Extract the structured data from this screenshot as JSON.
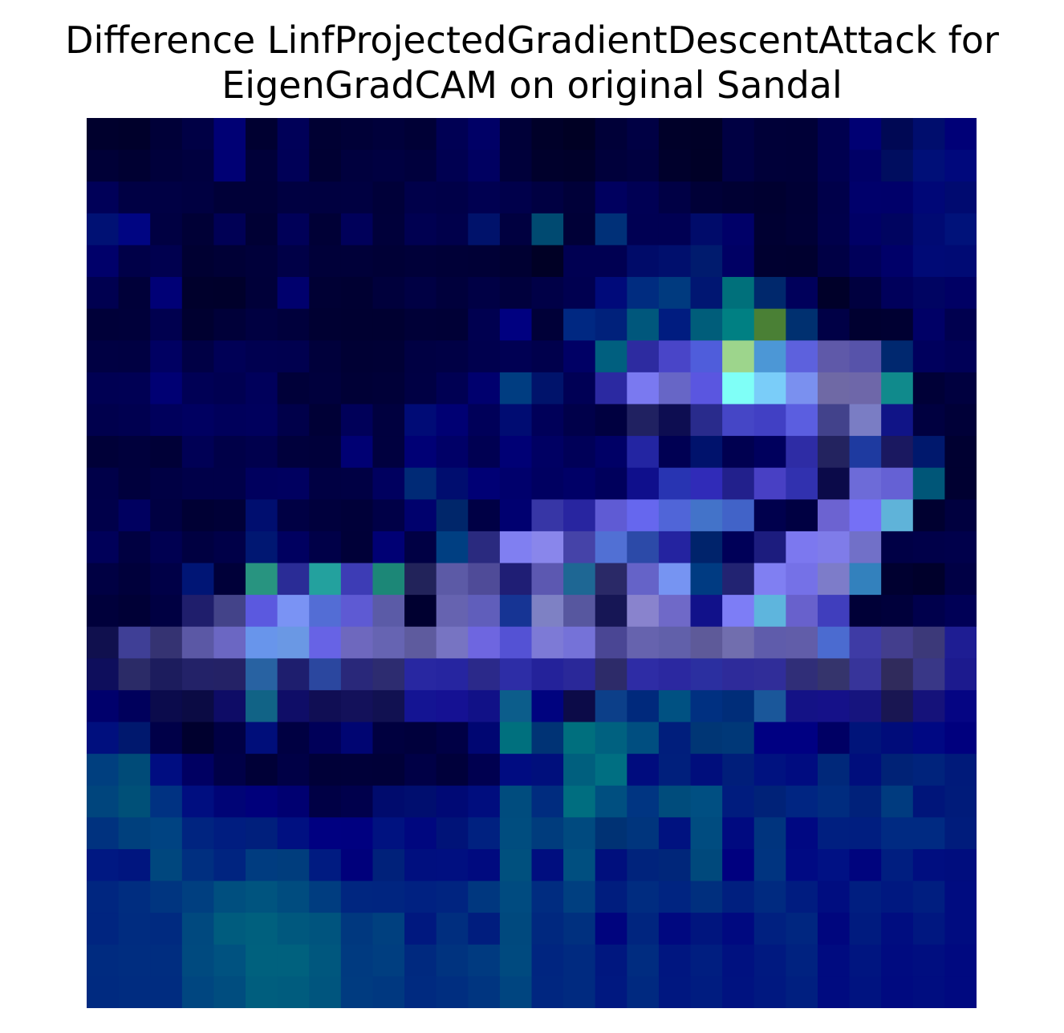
{
  "chart_data": {
    "type": "heatmap",
    "title_lines": [
      "Difference LinfProjectedGradientDescentAttack for",
      "EigenGradCAM on original Sandal"
    ],
    "axes_visible": false,
    "grid": false,
    "colorbar": false,
    "rows": 28,
    "cols": 28,
    "cells": [
      [
        "#00002d",
        "#00002b",
        "#000038",
        "#000045",
        "#000074",
        "#000031",
        "#000058",
        "#000033",
        "#000037",
        "#00003b",
        "#000036",
        "#000054",
        "#000066",
        "#000038",
        "#000029",
        "#000024",
        "#000038",
        "#000044",
        "#000029",
        "#000027",
        "#000043",
        "#000038",
        "#000037",
        "#00004f",
        "#000073",
        "#000854",
        "#000d6d",
        "#000077"
      ],
      [
        "#000037",
        "#000032",
        "#00003b",
        "#00003f",
        "#000074",
        "#000039",
        "#000057",
        "#000033",
        "#00003e",
        "#000041",
        "#00003d",
        "#000051",
        "#000061",
        "#00003a",
        "#00002c",
        "#00002a",
        "#00003b",
        "#000040",
        "#00002c",
        "#000027",
        "#000044",
        "#000039",
        "#000038",
        "#000050",
        "#000066",
        "#000d5f",
        "#000f78",
        "#00087c"
      ],
      [
        "#000058",
        "#000044",
        "#000044",
        "#000041",
        "#000038",
        "#000038",
        "#000041",
        "#000040",
        "#000041",
        "#000039",
        "#00004a",
        "#000048",
        "#000051",
        "#00004b",
        "#000042",
        "#000039",
        "#00005f",
        "#000054",
        "#000045",
        "#000037",
        "#000033",
        "#000030",
        "#000035",
        "#00004a",
        "#00006b",
        "#00006a",
        "#000777",
        "#000a70"
      ],
      [
        "#001174",
        "#000582",
        "#000042",
        "#000036",
        "#000055",
        "#000034",
        "#000058",
        "#000036",
        "#00005a",
        "#00003a",
        "#000051",
        "#00004b",
        "#00126b",
        "#000040",
        "#004a71",
        "#000037",
        "#003078",
        "#000053",
        "#000053",
        "#000b6a",
        "#000068",
        "#000032",
        "#000036",
        "#00004b",
        "#000066",
        "#000460",
        "#000a73",
        "#00127a"
      ],
      [
        "#00006a",
        "#000048",
        "#00004f",
        "#000032",
        "#000036",
        "#00003a",
        "#000047",
        "#000039",
        "#000039",
        "#000036",
        "#000039",
        "#000037",
        "#000036",
        "#000032",
        "#000025",
        "#000052",
        "#000052",
        "#000b69",
        "#000f6d",
        "#001b6e",
        "#000064",
        "#000030",
        "#00002f",
        "#000045",
        "#00005a",
        "#000069",
        "#000a76",
        "#000a74"
      ],
      [
        "#000050",
        "#000039",
        "#000076",
        "#00002c",
        "#00002b",
        "#000039",
        "#00006d",
        "#000034",
        "#000032",
        "#00003c",
        "#000044",
        "#00003c",
        "#000045",
        "#00003d",
        "#000047",
        "#000050",
        "#000a7a",
        "#002c80",
        "#003a7f",
        "#001672",
        "#00707b",
        "#00286c",
        "#00005b",
        "#000029",
        "#00003f",
        "#00005b",
        "#000462",
        "#000064"
      ],
      [
        "#000039",
        "#00003a",
        "#00004f",
        "#000030",
        "#000039",
        "#000041",
        "#00003c",
        "#000032",
        "#000031",
        "#000031",
        "#000037",
        "#000036",
        "#000050",
        "#000080",
        "#000038",
        "#002882",
        "#00217b",
        "#00577c",
        "#001c80",
        "#005d7a",
        "#008083",
        "#4a8035",
        "#003070",
        "#000046",
        "#000030",
        "#000032",
        "#000066",
        "#00004f"
      ],
      [
        "#000043",
        "#000042",
        "#000062",
        "#000045",
        "#000056",
        "#000050",
        "#00004f",
        "#00003b",
        "#000034",
        "#000035",
        "#000043",
        "#000045",
        "#00004e",
        "#000053",
        "#00004c",
        "#000065",
        "#005f7f",
        "#2d2ba0",
        "#4945c8",
        "#4f5ddb",
        "#9dd58c",
        "#4c97d6",
        "#5d61dd",
        "#5f59a9",
        "#5753aa",
        "#00286f",
        "#00005d",
        "#000057"
      ],
      [
        "#000053",
        "#000054",
        "#000073",
        "#000055",
        "#000051",
        "#00005b",
        "#000039",
        "#00003d",
        "#000036",
        "#000038",
        "#000044",
        "#000053",
        "#00006e",
        "#003d81",
        "#00136b",
        "#000055",
        "#2b29a1",
        "#7a79f0",
        "#6766c6",
        "#5a56e0",
        "#7ffff7",
        "#7acdf9",
        "#7a90ef",
        "#6f69a5",
        "#6e67a9",
        "#108a8c",
        "#000037",
        "#00003f"
      ],
      [
        "#00004d",
        "#000050",
        "#00005c",
        "#000061",
        "#00005b",
        "#00005d",
        "#00004a",
        "#000036",
        "#000059",
        "#00003f",
        "#000b76",
        "#000073",
        "#000059",
        "#000c72",
        "#000059",
        "#00004a",
        "#000040",
        "#202161",
        "#0d0d51",
        "#292b8c",
        "#4546c6",
        "#4140c4",
        "#5b5ee0",
        "#42428b",
        "#7a7dc4",
        "#101487",
        "#000040",
        "#000038"
      ],
      [
        "#000038",
        "#00003c",
        "#000037",
        "#000055",
        "#000048",
        "#00004d",
        "#00003c",
        "#00003a",
        "#000073",
        "#00003f",
        "#000075",
        "#000067",
        "#000052",
        "#000075",
        "#000063",
        "#000058",
        "#000066",
        "#2325a2",
        "#000053",
        "#00126c",
        "#000050",
        "#00005d",
        "#2e2ca5",
        "#23235f",
        "#1e3aa0",
        "#1a1860",
        "#00186d",
        "#000031"
      ],
      [
        "#000049",
        "#00003d",
        "#000044",
        "#000049",
        "#000049",
        "#00005e",
        "#000060",
        "#000043",
        "#000044",
        "#00005f",
        "#002a76",
        "#000d6f",
        "#000075",
        "#00006c",
        "#000061",
        "#000067",
        "#00005c",
        "#0f0f8c",
        "#2834b2",
        "#302bb8",
        "#22208c",
        "#4840c4",
        "#3131af",
        "#0b0a49",
        "#6d6bd8",
        "#6561d4",
        "#005678",
        "#000031"
      ],
      [
        "#00004a",
        "#000060",
        "#000042",
        "#000034",
        "#000037",
        "#000e6f",
        "#000044",
        "#00003d",
        "#000039",
        "#000047",
        "#00016d",
        "#00266a",
        "#000045",
        "#000070",
        "#3736a6",
        "#2825a0",
        "#5f5bd4",
        "#6667ee",
        "#5065d8",
        "#4373c9",
        "#4163c8",
        "#00004d",
        "#000042",
        "#6c63d1",
        "#7570f6",
        "#5fb3d9",
        "#000030",
        "#00003f"
      ],
      [
        "#000059",
        "#000041",
        "#000051",
        "#000041",
        "#000048",
        "#001772",
        "#000060",
        "#000048",
        "#000038",
        "#000074",
        "#000044",
        "#003f82",
        "#2a2a7f",
        "#807ff1",
        "#8986eb",
        "#4543a8",
        "#5170d4",
        "#2c4aa8",
        "#2423a0",
        "#00236b",
        "#000058",
        "#1c1c7e",
        "#7c78ef",
        "#7f7ce9",
        "#7170c8",
        "#000046",
        "#000049",
        "#00004b"
      ],
      [
        "#000043",
        "#00003b",
        "#000047",
        "#001575",
        "#000039",
        "#289480",
        "#2a2c96",
        "#23a19e",
        "#3d3cb5",
        "#1c8777",
        "#22235a",
        "#5c5aa6",
        "#4f4b98",
        "#1f1e75",
        "#5c58b1",
        "#1e6794",
        "#2a2967",
        "#6563c8",
        "#7694f2",
        "#003b82",
        "#222372",
        "#807ff2",
        "#7571e7",
        "#7d7cc9",
        "#3381bd",
        "#000030",
        "#00002b",
        "#000045"
      ],
      [
        "#00003b",
        "#000036",
        "#000042",
        "#1f1e6c",
        "#434389",
        "#5b59df",
        "#7a93f4",
        "#536dd5",
        "#5e5ad3",
        "#5b5ba7",
        "#000030",
        "#6663b0",
        "#605ebb",
        "#163494",
        "#7e81c4",
        "#57579f",
        "#161655",
        "#8983cd",
        "#6f69c8",
        "#11118a",
        "#7d7df6",
        "#5eb5dd",
        "#6861cc",
        "#403ebd",
        "#000037",
        "#00003b",
        "#00004c",
        "#000056"
      ],
      [
        "#10104e",
        "#3f3f96",
        "#353372",
        "#5b58a5",
        "#6b67c3",
        "#6895eb",
        "#6a98e4",
        "#6763e5",
        "#6e68be",
        "#6664b2",
        "#5e5b9e",
        "#7774c2",
        "#6e66e0",
        "#5452d4",
        "#7d7ad6",
        "#7572d8",
        "#4a4694",
        "#6663ae",
        "#6160aa",
        "#5e5a99",
        "#716eae",
        "#5f5cab",
        "#615da9",
        "#4b6bd0",
        "#3e3ba5",
        "#433e8d",
        "#3c3979",
        "#1e1d93"
      ],
      [
        "#0e0e5c",
        "#2b2b67",
        "#1c1c5d",
        "#232268",
        "#242266",
        "#2862a2",
        "#1e1e6e",
        "#2b479f",
        "#29287a",
        "#2d2c70",
        "#2827a1",
        "#2625a0",
        "#2b298a",
        "#2d2da6",
        "#24229a",
        "#2a2899",
        "#2d2b69",
        "#2e2ca5",
        "#2b28a0",
        "#2b2fa0",
        "#2e2b9a",
        "#302d99",
        "#302e78",
        "#35346c",
        "#37349a",
        "#302b5c",
        "#393787",
        "#1c1a8e"
      ],
      [
        "#00006c",
        "#00005c",
        "#0b0b4c",
        "#0b0b44",
        "#0e0c66",
        "#116386",
        "#0f0d67",
        "#100e54",
        "#13115a",
        "#111151",
        "#141493",
        "#151193",
        "#111187",
        "#0c5d8b",
        "#00037f",
        "#0c0b48",
        "#0c3f89",
        "#00297c",
        "#005182",
        "#003081",
        "#002d79",
        "#1a579a",
        "#141286",
        "#151189",
        "#16147e",
        "#191652",
        "#15127a",
        "#050583"
      ],
      [
        "#000f7e",
        "#00186e",
        "#000048",
        "#00002e",
        "#000044",
        "#000e7a",
        "#000042",
        "#000059",
        "#000572",
        "#00003f",
        "#00003c",
        "#000045",
        "#000672",
        "#00707e",
        "#003375",
        "#006f7e",
        "#006180",
        "#004e80",
        "#001e7c",
        "#003675",
        "#003878",
        "#000082",
        "#000082",
        "#000064",
        "#00147a",
        "#000c7a",
        "#000883",
        "#00007e"
      ],
      [
        "#003f7f",
        "#004b78",
        "#000d81",
        "#000062",
        "#000047",
        "#000037",
        "#000046",
        "#000038",
        "#000039",
        "#000038",
        "#000046",
        "#00003b",
        "#000050",
        "#000c81",
        "#000f7c",
        "#005f7e",
        "#006f82",
        "#000c7e",
        "#001f7c",
        "#000e7c",
        "#001e7a",
        "#001280",
        "#000c80",
        "#00287a",
        "#000e7c",
        "#002276",
        "#00237c",
        "#001a7a"
      ],
      [
        "#00457d",
        "#005078",
        "#003282",
        "#000e80",
        "#000476",
        "#00007b",
        "#000071",
        "#000045",
        "#00004c",
        "#000b6d",
        "#000e6f",
        "#000975",
        "#000d7e",
        "#004c7e",
        "#002c7f",
        "#006e80",
        "#004f80",
        "#003582",
        "#004c7c",
        "#004f82",
        "#001c7e",
        "#002278",
        "#002582",
        "#002c7f",
        "#00217a",
        "#003b7f",
        "#00157a",
        "#001b7a"
      ],
      [
        "#00327f",
        "#00407d",
        "#004382",
        "#002480",
        "#001d80",
        "#001f7c",
        "#001081",
        "#000081",
        "#000080",
        "#001280",
        "#00077f",
        "#001378",
        "#002180",
        "#004d7f",
        "#003c7d",
        "#004a7f",
        "#003274",
        "#00357d",
        "#001280",
        "#004c80",
        "#000a80",
        "#00347e",
        "#000882",
        "#001f80",
        "#001e80",
        "#002a82",
        "#002a82",
        "#001c7c"
      ],
      [
        "#001882",
        "#00157f",
        "#00477e",
        "#002f80",
        "#002480",
        "#003c80",
        "#003d7d",
        "#001b81",
        "#00007b",
        "#00217a",
        "#000f7f",
        "#000f80",
        "#000a7f",
        "#00507e",
        "#000e7f",
        "#004f80",
        "#000f7d",
        "#00237c",
        "#00267a",
        "#00497c",
        "#00007f",
        "#003480",
        "#000a83",
        "#001184",
        "#00047e",
        "#001e80",
        "#000e80",
        "#000d7e"
      ],
      [
        "#002680",
        "#002d80",
        "#003580",
        "#003f80",
        "#004f7f",
        "#00547f",
        "#004c7f",
        "#003d80",
        "#002680",
        "#002580",
        "#002181",
        "#002480",
        "#00377f",
        "#004b80",
        "#002c80",
        "#003f80",
        "#001d7e",
        "#002c80",
        "#002481",
        "#002f7e",
        "#001f7f",
        "#002a80",
        "#001c80",
        "#000d80",
        "#001e80",
        "#001880",
        "#001e80",
        "#000c80"
      ],
      [
        "#002580",
        "#002c80",
        "#002a80",
        "#00497f",
        "#005c7e",
        "#00607e",
        "#00587e",
        "#00547e",
        "#00387f",
        "#00407f",
        "#00187f",
        "#002e7f",
        "#001d7e",
        "#00497e",
        "#00287f",
        "#00307f",
        "#00047e",
        "#00257f",
        "#000880",
        "#00157e",
        "#000980",
        "#002080",
        "#002680",
        "#00067e",
        "#001b7f",
        "#000d80",
        "#001780",
        "#000c80"
      ],
      [
        "#002b80",
        "#002d80",
        "#002d80",
        "#004a7f",
        "#005280",
        "#00617e",
        "#00617e",
        "#00577e",
        "#003a80",
        "#003e80",
        "#00297f",
        "#00337f",
        "#003a80",
        "#004a7f",
        "#002580",
        "#002a80",
        "#00177f",
        "#002c80",
        "#001680",
        "#001e80",
        "#001180",
        "#001980",
        "#002280",
        "#000b80",
        "#001580",
        "#000b80",
        "#000e80",
        "#000980"
      ],
      [
        "#002a80",
        "#002c80",
        "#002c80",
        "#004680",
        "#004d7f",
        "#005e7e",
        "#005c7e",
        "#00557e",
        "#003b80",
        "#003880",
        "#002a80",
        "#002e80",
        "#003580",
        "#004580",
        "#002680",
        "#002a80",
        "#001880",
        "#002980",
        "#001780",
        "#001c80",
        "#001280",
        "#001880",
        "#001f80",
        "#000b80",
        "#001380",
        "#000a80",
        "#000d80",
        "#000980"
      ]
    ]
  }
}
